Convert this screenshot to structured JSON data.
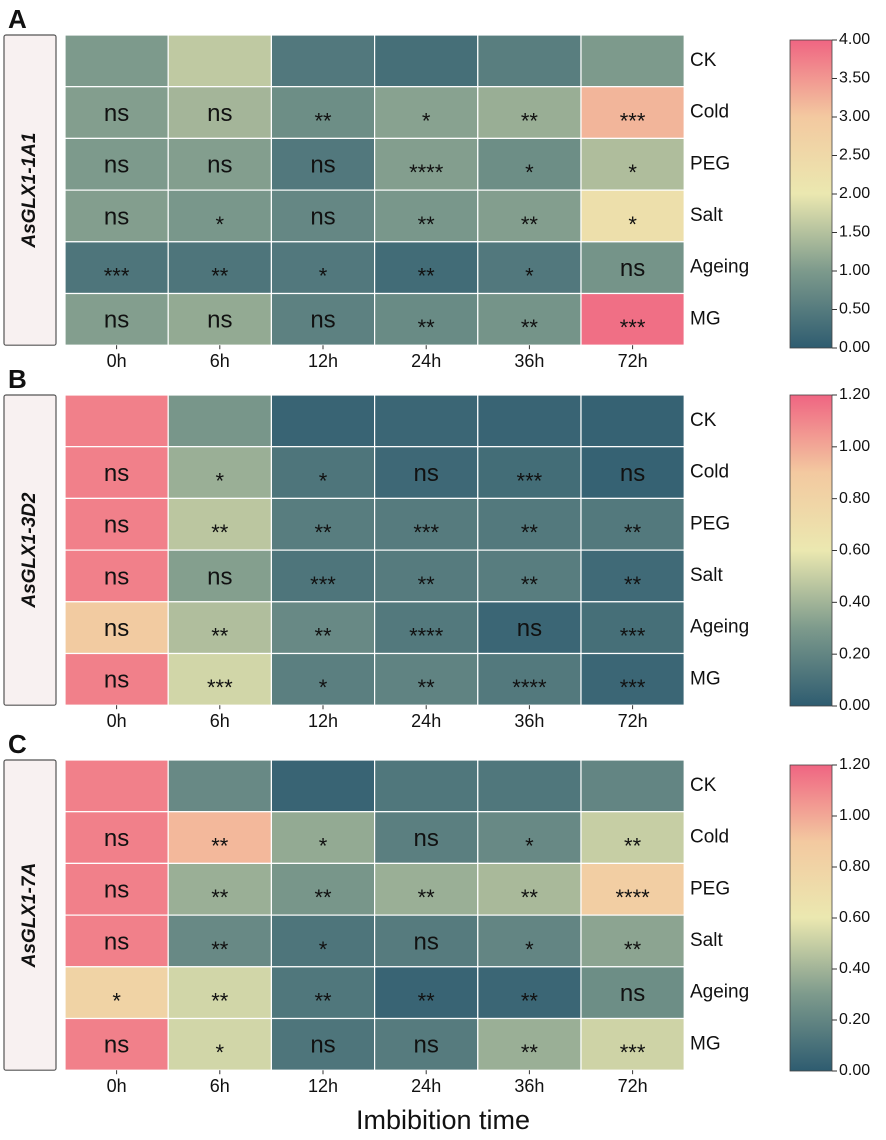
{
  "xlabel": "Imbibition time",
  "colors": {
    "ramp": [
      "#2e5c70",
      "#7d9a8c",
      "#ebe8b0",
      "#f3c9a0",
      "#f06582"
    ],
    "grid_line": "#ffffff",
    "text": "#111111",
    "gene_box_fill": "#f8f1f1"
  },
  "chart_data": [
    {
      "type": "heatmap",
      "panel": "A",
      "gene": "AsGLX1-1A1",
      "columns": [
        "0h",
        "6h",
        "12h",
        "24h",
        "36h",
        "72h"
      ],
      "rows": [
        "CK",
        "Cold",
        "PEG",
        "Salt",
        "Ageing",
        "MG"
      ],
      "values": [
        [
          1.0,
          1.6,
          0.45,
          0.3,
          0.55,
          1.0
        ],
        [
          1.05,
          1.35,
          0.8,
          1.1,
          1.25,
          3.2
        ],
        [
          1.0,
          1.05,
          0.45,
          1.05,
          0.8,
          1.45
        ],
        [
          1.05,
          0.95,
          0.7,
          0.95,
          1.05,
          2.3
        ],
        [
          0.4,
          0.4,
          0.45,
          0.25,
          0.45,
          0.9
        ],
        [
          1.05,
          1.2,
          0.6,
          0.75,
          0.9,
          3.9
        ]
      ],
      "annotations": [
        [
          "",
          "",
          "",
          "",
          "",
          ""
        ],
        [
          "ns",
          "ns",
          "**",
          "*",
          "**",
          "***"
        ],
        [
          "ns",
          "ns",
          "ns",
          "****",
          "*",
          "*"
        ],
        [
          "ns",
          "*",
          "ns",
          "**",
          "**",
          "*"
        ],
        [
          "***",
          "**",
          "*",
          "**",
          "*",
          "ns"
        ],
        [
          "ns",
          "ns",
          "ns",
          "**",
          "**",
          "***"
        ]
      ],
      "colorbar": {
        "min": 0,
        "max": 4,
        "ticks": [
          "0.00",
          "0.50",
          "1.00",
          "1.50",
          "2.00",
          "2.50",
          "3.00",
          "3.50",
          "4.00"
        ]
      }
    },
    {
      "type": "heatmap",
      "panel": "B",
      "gene": "AsGLX1-3D2",
      "columns": [
        "0h",
        "6h",
        "12h",
        "24h",
        "36h",
        "72h"
      ],
      "rows": [
        "CK",
        "Cold",
        "PEG",
        "Salt",
        "Ageing",
        "MG"
      ],
      "values": [
        [
          1.12,
          0.28,
          0.04,
          0.05,
          0.04,
          0.03
        ],
        [
          1.12,
          0.38,
          0.12,
          0.06,
          0.08,
          0.03
        ],
        [
          1.12,
          0.47,
          0.16,
          0.15,
          0.14,
          0.14
        ],
        [
          1.12,
          0.32,
          0.12,
          0.15,
          0.16,
          0.07
        ],
        [
          0.88,
          0.44,
          0.22,
          0.14,
          0.05,
          0.09
        ],
        [
          1.12,
          0.53,
          0.17,
          0.19,
          0.14,
          0.05
        ]
      ],
      "annotations": [
        [
          "",
          "",
          "",
          "",
          "",
          ""
        ],
        [
          "ns",
          "*",
          "*",
          "ns",
          "***",
          "ns"
        ],
        [
          "ns",
          "**",
          "**",
          "***",
          "**",
          "**"
        ],
        [
          "ns",
          "ns",
          "***",
          "**",
          "**",
          "**"
        ],
        [
          "ns",
          "**",
          "**",
          "****",
          "ns",
          "***"
        ],
        [
          "ns",
          "***",
          "*",
          "**",
          "****",
          "***"
        ]
      ],
      "colorbar": {
        "min": 0,
        "max": 1.2,
        "ticks": [
          "0.00",
          "0.20",
          "0.40",
          "0.60",
          "0.80",
          "1.00",
          "1.20"
        ]
      }
    },
    {
      "type": "heatmap",
      "panel": "C",
      "gene": "AsGLX1-7A",
      "columns": [
        "0h",
        "6h",
        "12h",
        "24h",
        "36h",
        "72h"
      ],
      "rows": [
        "CK",
        "Cold",
        "PEG",
        "Salt",
        "Ageing",
        "MG"
      ],
      "values": [
        [
          1.12,
          0.22,
          0.04,
          0.13,
          0.13,
          0.2
        ],
        [
          1.12,
          0.95,
          0.36,
          0.17,
          0.22,
          0.5
        ],
        [
          1.12,
          0.38,
          0.28,
          0.38,
          0.42,
          0.85
        ],
        [
          1.12,
          0.22,
          0.12,
          0.15,
          0.2,
          0.34
        ],
        [
          0.8,
          0.53,
          0.13,
          0.04,
          0.05,
          0.24
        ],
        [
          1.12,
          0.53,
          0.12,
          0.15,
          0.38,
          0.52
        ]
      ],
      "annotations": [
        [
          "",
          "",
          "",
          "",
          "",
          ""
        ],
        [
          "ns",
          "**",
          "*",
          "ns",
          "*",
          "**"
        ],
        [
          "ns",
          "**",
          "**",
          "**",
          "**",
          "****"
        ],
        [
          "ns",
          "**",
          "*",
          "ns",
          "*",
          "**"
        ],
        [
          "*",
          "**",
          "**",
          "**",
          "**",
          "ns"
        ],
        [
          "ns",
          "*",
          "ns",
          "ns",
          "**",
          "***"
        ]
      ],
      "colorbar": {
        "min": 0,
        "max": 1.2,
        "ticks": [
          "0.00",
          "0.20",
          "0.40",
          "0.60",
          "0.80",
          "1.00",
          "1.20"
        ]
      }
    }
  ]
}
